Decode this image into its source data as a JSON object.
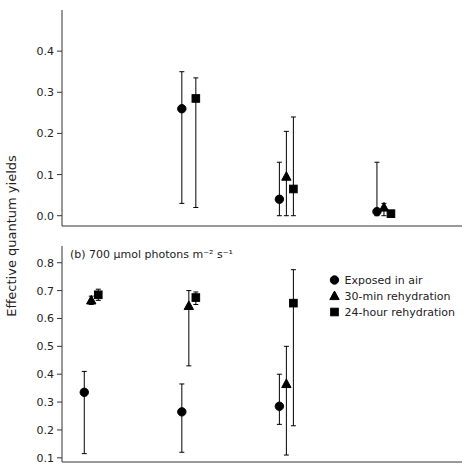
{
  "chart_data": [
    {
      "type": "scatter",
      "ylabel": "Effective quantum yields",
      "color": "black",
      "xlim": [
        0.7,
        4.8
      ],
      "xticks": [],
      "ylim": [
        -0.025,
        0.5
      ],
      "yticks": [
        {
          "value": 0,
          "label": "0.0"
        },
        0.1,
        0.2,
        0.3,
        0.4
      ],
      "tick_labels": "y",
      "series": [
        {
          "name": "Exposed in air",
          "marker": "circle",
          "x": [
            2,
            3,
            4
          ],
          "values": [
            0.26,
            0.04,
            0.01
          ],
          "error_low": [
            0.23,
            0.04,
            0.01
          ],
          "error_high": [
            0.09,
            0.09,
            0.12
          ]
        },
        {
          "name": "30-min rehydration",
          "marker": "triangle",
          "x": [
            3,
            4
          ],
          "values": [
            0.095,
            0.02
          ],
          "error_low": [
            0.095,
            0.02
          ],
          "error_high": [
            0.11,
            0.01
          ]
        },
        {
          "name": "24-hour rehydration",
          "marker": "square",
          "x": [
            2,
            3,
            4
          ],
          "values": [
            0.285,
            0.065,
            0.005
          ],
          "error_low": [
            0.265,
            0.065,
            0.005
          ],
          "error_high": [
            0.05,
            0.175,
            0.005
          ]
        }
      ]
    },
    {
      "type": "scatter",
      "color": "black",
      "xlim": [
        0.7,
        4.8
      ],
      "xticks": [],
      "ylim": [
        0.085,
        0.86
      ],
      "yticks": [
        0.1,
        0.2,
        0.3,
        0.4,
        0.5,
        0.6,
        0.7,
        0.8
      ],
      "tick_labels": "y",
      "annotation": "(b) 700 μmol photons m⁻² s⁻¹",
      "legend": "upper right",
      "series": [
        {
          "name": "Exposed in air",
          "marker": "circle",
          "x": [
            1,
            2,
            3
          ],
          "values": [
            0.335,
            0.265,
            0.285
          ],
          "error_low": [
            0.22,
            0.145,
            0.065
          ],
          "error_high": [
            0.075,
            0.1,
            0.115
          ]
        },
        {
          "name": "30-min rehydration",
          "marker": "triangle",
          "x": [
            1,
            2,
            3
          ],
          "values": [
            0.665,
            0.645,
            0.365
          ],
          "error_low": [
            0.015,
            0.215,
            0.255
          ],
          "error_high": [
            0.015,
            0.055,
            0.135
          ]
        },
        {
          "name": "24-hour rehydration",
          "marker": "square",
          "x": [
            1,
            2,
            3
          ],
          "values": [
            0.685,
            0.675,
            0.655
          ],
          "error_low": [
            0.02,
            0.025,
            0.44
          ],
          "error_high": [
            0.02,
            0.02,
            0.12
          ]
        }
      ]
    }
  ]
}
